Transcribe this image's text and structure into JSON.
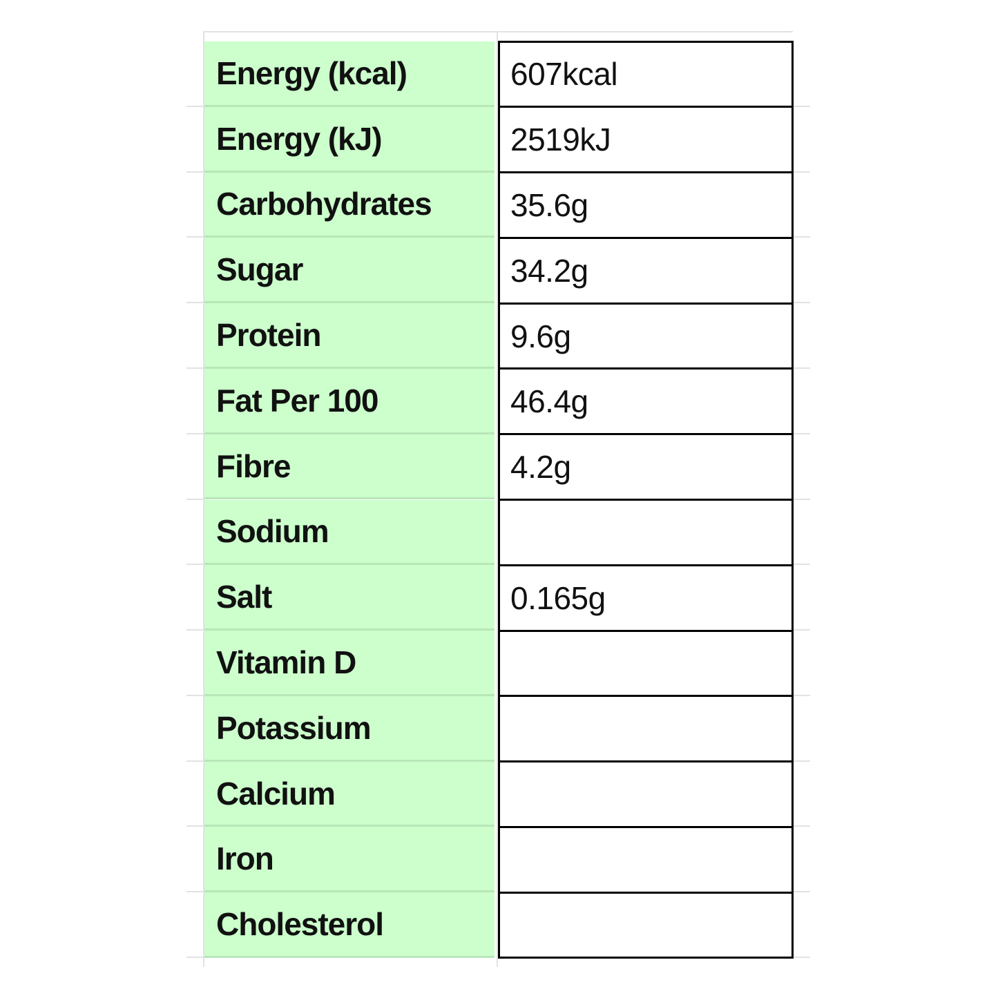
{
  "table": {
    "rows": [
      {
        "label": "Energy (kcal)",
        "value": "607kcal"
      },
      {
        "label": "Energy (kJ)",
        "value": "2519kJ"
      },
      {
        "label": "Carbohydrates",
        "value": "35.6g"
      },
      {
        "label": "Sugar",
        "value": "34.2g"
      },
      {
        "label": "Protein",
        "value": "9.6g"
      },
      {
        "label": "Fat Per 100",
        "value": "46.4g"
      },
      {
        "label": "Fibre",
        "value": "4.2g"
      },
      {
        "label": "Sodium"
      },
      {
        "label": "Salt",
        "value": "0.165g"
      },
      {
        "label": "Vitamin D"
      },
      {
        "label": "Potassium"
      },
      {
        "label": "Calcium"
      },
      {
        "label": "Iron"
      },
      {
        "label": "Cholesterol"
      }
    ]
  }
}
